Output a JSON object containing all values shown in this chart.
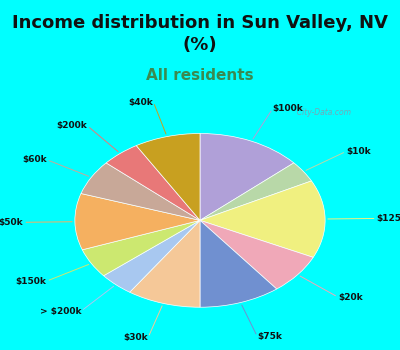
{
  "title": "Income distribution in Sun Valley, NV\n(%)",
  "subtitle": "All residents",
  "title_fontsize": 13,
  "subtitle_fontsize": 11,
  "bg_cyan": "#00FFFF",
  "chart_bg": "#c8e8d8",
  "labels": [
    "$100k",
    "$10k",
    "$125k",
    "$20k",
    "$75k",
    "$30k",
    "> $200k",
    "$150k",
    "$50k",
    "$60k",
    "$200k",
    "$40k"
  ],
  "sizes": [
    13.5,
    4.0,
    14.5,
    7.5,
    10.5,
    9.5,
    4.5,
    5.5,
    10.5,
    6.5,
    5.0,
    8.5
  ],
  "colors": [
    "#b0a0d8",
    "#b8d8a8",
    "#f0f080",
    "#f0a8b8",
    "#7090d0",
    "#f5c898",
    "#a8c8f0",
    "#cce870",
    "#f5b060",
    "#c8a898",
    "#e87878",
    "#c8a020"
  ],
  "watermark": "  City-Data.com",
  "line_colors": [
    "#b0a0d8",
    "#b8d8a8",
    "#f0f080",
    "#f0a8b8",
    "#7090d0",
    "#f5c898",
    "#a8c8f0",
    "#cce870",
    "#f5b060",
    "#c8a898",
    "#e87878",
    "#c8a020"
  ]
}
